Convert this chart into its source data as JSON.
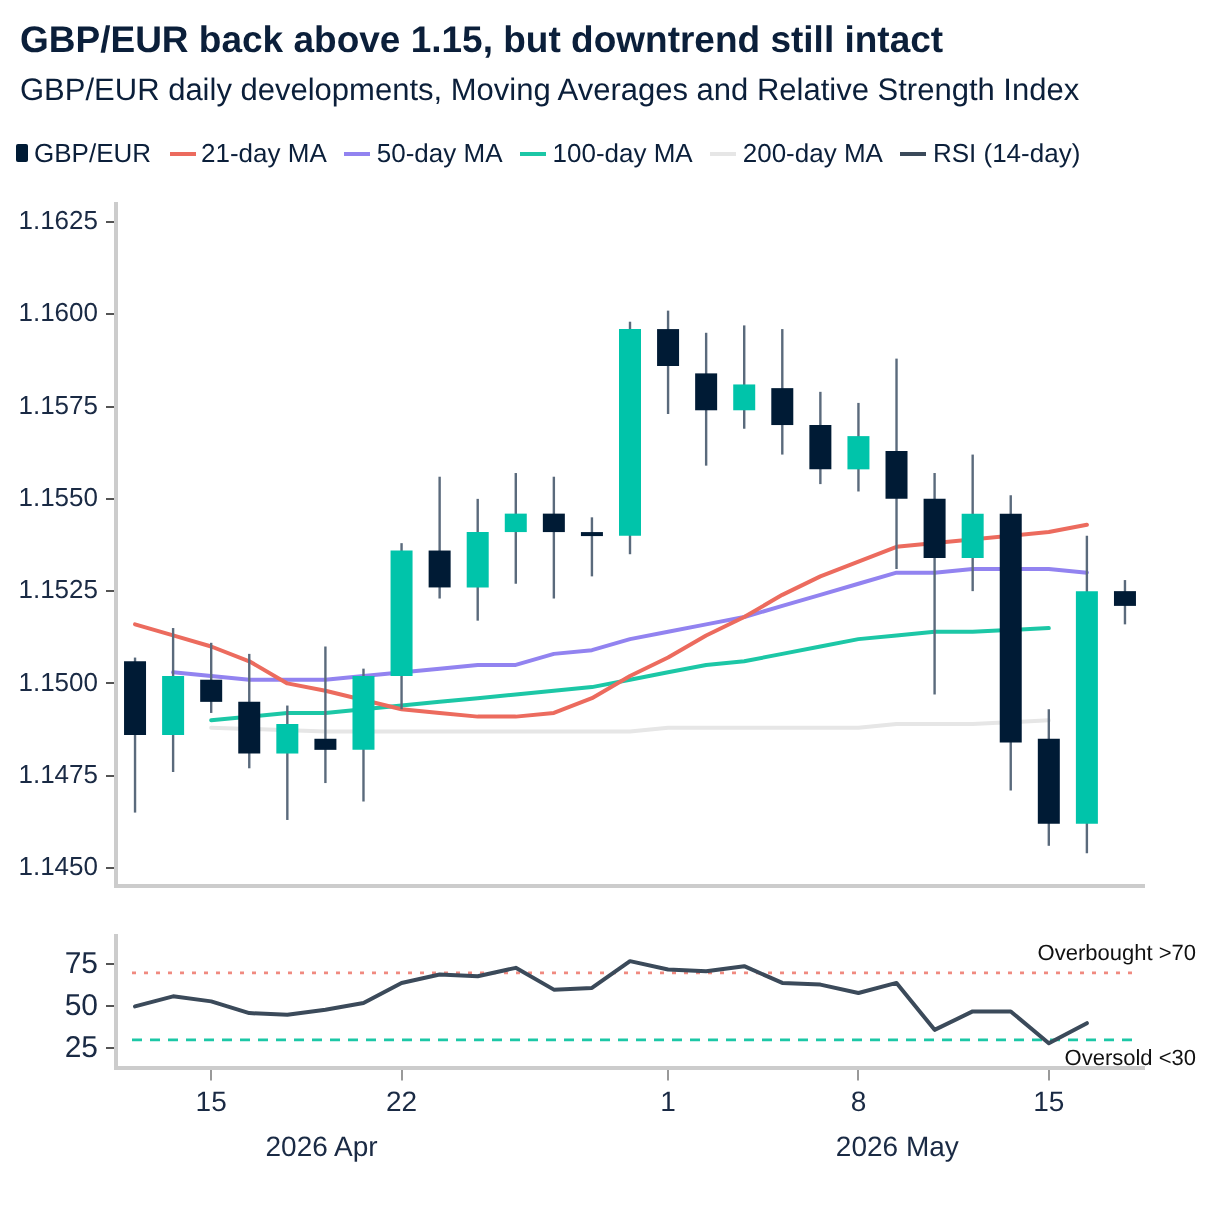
{
  "chart_data": [
    {
      "type": "candlestick",
      "title": "GBP/EUR back above 1.15, but downtrend still intact",
      "subtitle": "GBP/EUR daily developments, Moving Averages and Relative Strength Index",
      "categories": [
        null,
        null,
        "15",
        null,
        null,
        null,
        null,
        "22",
        null,
        null,
        null,
        null,
        null,
        null,
        "1",
        null,
        null,
        null,
        null,
        "8",
        null,
        null,
        null,
        null,
        "15",
        null,
        null
      ],
      "series": [
        {
          "type": "candlestick",
          "name": "GBP/EUR",
          "ohlc": [
            [
              1.1506,
              1.1507,
              1.1465,
              1.1486
            ],
            [
              1.1486,
              1.1515,
              1.1476,
              1.1502
            ],
            [
              1.1501,
              1.1511,
              1.1492,
              1.1495
            ],
            [
              1.1495,
              1.1508,
              1.1477,
              1.1481
            ],
            [
              1.1481,
              1.1494,
              1.1463,
              1.1489
            ],
            [
              1.1485,
              1.151,
              1.1473,
              1.1482
            ],
            [
              1.1482,
              1.1504,
              1.1468,
              1.1502
            ],
            [
              1.1502,
              1.1538,
              1.1493,
              1.1536
            ],
            [
              1.1536,
              1.1556,
              1.1523,
              1.1526
            ],
            [
              1.1526,
              1.155,
              1.1517,
              1.1541
            ],
            [
              1.1541,
              1.1557,
              1.1527,
              1.1546
            ],
            [
              1.1546,
              1.1556,
              1.1523,
              1.1541
            ],
            [
              1.1541,
              1.1545,
              1.1529,
              1.154
            ],
            [
              1.154,
              1.1598,
              1.1535,
              1.1596
            ],
            [
              1.1596,
              1.1601,
              1.1573,
              1.1586
            ],
            [
              1.1584,
              1.1595,
              1.1559,
              1.1574
            ],
            [
              1.1574,
              1.1597,
              1.1569,
              1.1581
            ],
            [
              1.158,
              1.1596,
              1.1562,
              1.157
            ],
            [
              1.157,
              1.1579,
              1.1554,
              1.1558
            ],
            [
              1.1558,
              1.1576,
              1.1552,
              1.1567
            ],
            [
              1.1563,
              1.1588,
              1.1531,
              1.155
            ],
            [
              1.155,
              1.1557,
              1.1497,
              1.1534
            ],
            [
              1.1534,
              1.1562,
              1.1525,
              1.1546
            ],
            [
              1.1546,
              1.1551,
              1.1471,
              1.1484
            ],
            [
              1.1485,
              1.1493,
              1.1456,
              1.1462
            ],
            [
              1.1462,
              1.154,
              1.1454,
              1.1525
            ],
            [
              1.1525,
              1.1528,
              1.1516,
              1.1521
            ]
          ],
          "colors": [
            "#001b35",
            "#00c4aa",
            "#001b35",
            "#001b35",
            "#00c4aa",
            "#001b35",
            "#00c4aa",
            "#00c4aa",
            "#001b35",
            "#00c4aa",
            "#00c4aa",
            "#001b35",
            "#001b35",
            "#00c4aa",
            "#001b35",
            "#001b35",
            "#00c4aa",
            "#001b35",
            "#001b35",
            "#00c4aa",
            "#001b35",
            "#001b35",
            "#00c4aa",
            "#001b35",
            "#001b35",
            "#00c4aa",
            "#001b35"
          ]
        },
        {
          "type": "line",
          "name": "21-day MA",
          "color": "#ec6b5e",
          "values": [
            1.1516,
            1.1513,
            1.151,
            1.1506,
            1.15,
            1.1498,
            null,
            1.1493,
            1.1492,
            1.1491,
            1.1491,
            1.1492,
            1.1496,
            1.1502,
            1.1507,
            1.1513,
            1.1518,
            1.1524,
            1.1529,
            1.1533,
            1.1537,
            null,
            null,
            null,
            1.1541,
            1.1543,
            null
          ]
        },
        {
          "type": "line",
          "name": "50-day MA",
          "color": "#9283f0",
          "values": [
            null,
            1.1503,
            1.1502,
            1.1501,
            1.1501,
            1.1501,
            1.1502,
            null,
            1.1504,
            1.1505,
            1.1505,
            1.1508,
            1.1509,
            1.1512,
            1.1514,
            1.1516,
            1.1518,
            1.1521,
            1.1524,
            1.1527,
            1.153,
            1.153,
            1.1531,
            null,
            1.1531,
            1.153,
            null
          ]
        },
        {
          "type": "line",
          "name": "100-day MA",
          "color": "#1cc7a6",
          "values": [
            null,
            null,
            1.149,
            null,
            1.1492,
            1.1492,
            null,
            1.1494,
            1.1495,
            1.1496,
            1.1497,
            1.1498,
            1.1499,
            1.1501,
            1.1503,
            1.1505,
            1.1506,
            1.1508,
            1.151,
            1.1512,
            1.1513,
            1.1514,
            1.1514,
            null,
            1.1515,
            null,
            null
          ]
        },
        {
          "type": "line",
          "name": "200-day MA",
          "color": "#e6e6e6",
          "values": [
            null,
            null,
            1.1488,
            null,
            null,
            1.1487,
            null,
            1.1487,
            1.1487,
            1.1487,
            1.1487,
            1.1487,
            1.1487,
            1.1487,
            1.1488,
            1.1488,
            1.1488,
            1.1488,
            1.1488,
            1.1488,
            1.1489,
            1.1489,
            1.1489,
            null,
            1.149,
            null,
            null
          ]
        }
      ],
      "ylim": [
        1.1445,
        1.163
      ],
      "yticks": [
        {
          "value": 1.145,
          "label": "1.1450"
        },
        1.1475,
        {
          "value": 1.15,
          "label": "1.1500"
        },
        1.1525,
        {
          "value": 1.155,
          "label": "1.1550"
        },
        1.1575,
        {
          "value": 1.16,
          "label": "1.1600"
        },
        1.1625
      ],
      "tick_labels": "y",
      "legend": "top left"
    },
    {
      "type": "line",
      "categories": [
        null,
        null,
        "15",
        null,
        null,
        null,
        null,
        "22",
        null,
        null,
        null,
        null,
        null,
        null,
        "1",
        null,
        null,
        null,
        null,
        "8",
        null,
        null,
        null,
        null,
        "15",
        null,
        null
      ],
      "series": [
        {
          "name": "RSI (14-day)",
          "color": "#3b4a5a",
          "values": [
            50,
            56,
            53,
            46,
            45,
            48,
            52,
            64,
            69,
            68,
            73,
            60,
            61,
            77,
            72,
            71,
            74,
            64,
            63,
            58,
            64,
            36,
            47,
            47,
            28,
            40,
            null
          ]
        }
      ],
      "ylim": [
        13,
        92
      ],
      "yticks": [
        25,
        50,
        75
      ],
      "ref_lines": [
        {
          "axis": "y",
          "value": 70,
          "label": "Overbought >70",
          "color": "#f08a80",
          "line_style": "dotted"
        },
        {
          "axis": "y",
          "value": 30,
          "label": "Oversold <30",
          "color": "#1cc7a6",
          "line_style": "dashed"
        }
      ],
      "annotations": [
        "2026 Apr",
        "2026 May"
      ],
      "legend": "top right"
    }
  ]
}
